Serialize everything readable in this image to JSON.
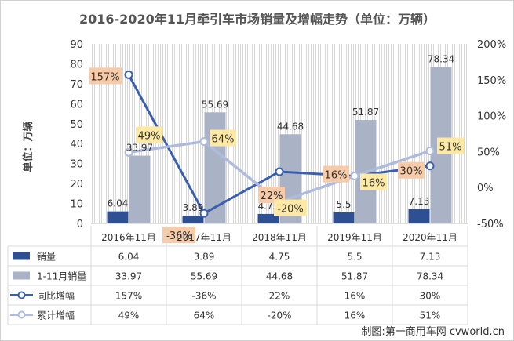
{
  "chart_data": {
    "type": "bar",
    "title": "2016-2020年11月牵引车市场销量及增幅走势（单位：万辆）",
    "ylabel": "单位：万辆",
    "categories": [
      "2016年11月",
      "2017年11月",
      "2018年11月",
      "2019年11月",
      "2020年11月"
    ],
    "ylim": [
      0,
      90
    ],
    "yticks": [
      0,
      10,
      20,
      30,
      40,
      50,
      60,
      70,
      80,
      90
    ],
    "y2lim": [
      -50,
      200
    ],
    "y2ticks": [
      "-50%",
      "0%",
      "50%",
      "100%",
      "150%",
      "200%"
    ],
    "grid": "vertical-hatch",
    "legend": "table-below",
    "series": [
      {
        "name": "销量",
        "kind": "bar",
        "color": "#2f4f93",
        "values": [
          6.04,
          3.89,
          4.75,
          5.5,
          7.13
        ],
        "labels": [
          "6.04",
          "3.89",
          "4.75",
          "5.5",
          "7.13"
        ]
      },
      {
        "name": "1-11月销量",
        "kind": "bar",
        "color": "#aab3c6",
        "values": [
          33.97,
          55.69,
          44.68,
          51.87,
          78.34
        ],
        "labels": [
          "33.97",
          "55.69",
          "44.68",
          "51.87",
          "78.34"
        ]
      },
      {
        "name": "同比增幅",
        "kind": "line",
        "axis": "right",
        "color": "#3a5fb0",
        "label_bg": "#f7caa8",
        "values": [
          157,
          -36,
          22,
          16,
          30
        ],
        "labels": [
          "157%",
          "-36%",
          "22%",
          "16%",
          "30%"
        ]
      },
      {
        "name": "累计增幅",
        "kind": "line",
        "axis": "right",
        "color": "#aebbdc",
        "label_bg": "#fde9a3",
        "values": [
          49,
          64,
          -20,
          16,
          51
        ],
        "labels": [
          "49%",
          "64%",
          "-20%",
          "16%",
          "51%"
        ]
      }
    ],
    "source": "制图:第一商用车网 cvworld.cn"
  }
}
